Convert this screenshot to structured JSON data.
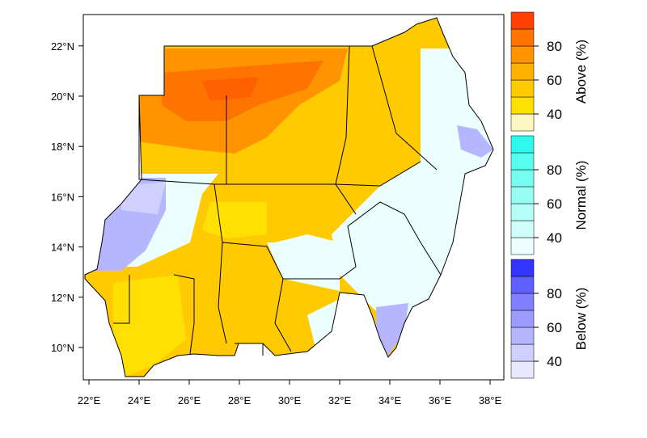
{
  "map": {
    "x_axis": {
      "ticks": [
        "22°E",
        "24°E",
        "26°E",
        "28°E",
        "30°E",
        "32°E",
        "34°E",
        "36°E",
        "38°E"
      ]
    },
    "y_axis": {
      "ticks": [
        "10°N",
        "12°N",
        "14°N",
        "16°N",
        "18°N",
        "20°N",
        "22°N"
      ]
    }
  },
  "legends": [
    {
      "title": "Above (%)",
      "ticks": [
        40,
        60,
        80
      ],
      "colors": [
        "#fff6c0",
        "#ffe000",
        "#ffca00",
        "#ffb000",
        "#ff9400",
        "#ff7400",
        "#ff4000"
      ]
    },
    {
      "title": "Normal (%)",
      "ticks": [
        40,
        60,
        80
      ],
      "colors": [
        "#eafffe",
        "#d0fffb",
        "#b4fff8",
        "#96fff4",
        "#76fff0",
        "#56ffee",
        "#30f8ee"
      ]
    },
    {
      "title": "Below (%)",
      "ticks": [
        40,
        60,
        80
      ],
      "colors": [
        "#e8e8ff",
        "#d0d0ff",
        "#b6b6ff",
        "#9c9cff",
        "#8080ff",
        "#6060ff",
        "#3434ff"
      ]
    }
  ]
}
